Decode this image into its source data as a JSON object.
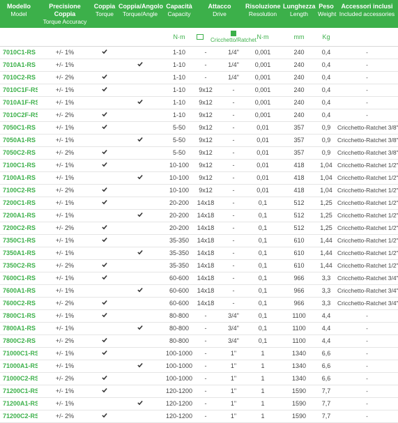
{
  "colors": {
    "brand": "#3cb04a",
    "text": "#444",
    "border": "#e5e5e5"
  },
  "headers": {
    "model": {
      "it": "Modello",
      "en": "Model"
    },
    "accuracy": {
      "it": "Precisione Coppia",
      "en": "Torque Accuracy"
    },
    "torque": {
      "it": "Coppia",
      "en": "Torque"
    },
    "angle": {
      "it": "Coppia/Angolo",
      "en": "Torque/Angle"
    },
    "capacity": {
      "it": "Capacità",
      "en": "Capacity"
    },
    "drive": {
      "it": "Attacco",
      "en": "Drive"
    },
    "resolution": {
      "it": "Risoluzione",
      "en": "Resolution"
    },
    "length": {
      "it": "Lunghezza",
      "en": "Length"
    },
    "weight": {
      "it": "Peso",
      "en": "Weight"
    },
    "accessories": {
      "it": "Accessori inclusi",
      "en": "Included accessories"
    }
  },
  "units": {
    "capacity": "N·m",
    "drive_label": "Cricchetto/Ratchet",
    "resolution": "N·m",
    "length": "mm",
    "weight": "Kg"
  },
  "rows": [
    {
      "model": "7010C1-RS",
      "accuracy": "+/- 1%",
      "torque": true,
      "angle": false,
      "capacity": "1-10",
      "drive_open": "-",
      "drive_ratchet": "1/4\"",
      "resolution": "0,001",
      "length": "240",
      "weight": "0,4",
      "accessories": "-"
    },
    {
      "model": "7010A1-RS",
      "accuracy": "+/- 1%",
      "torque": false,
      "angle": true,
      "capacity": "1-10",
      "drive_open": "-",
      "drive_ratchet": "1/4\"",
      "resolution": "0,001",
      "length": "240",
      "weight": "0,4",
      "accessories": "-"
    },
    {
      "model": "7010C2-RS",
      "accuracy": "+/- 2%",
      "torque": true,
      "angle": false,
      "capacity": "1-10",
      "drive_open": "-",
      "drive_ratchet": "1/4\"",
      "resolution": "0,001",
      "length": "240",
      "weight": "0,4",
      "accessories": "-"
    },
    {
      "model": "7010C1F-RS",
      "accuracy": "+/- 1%",
      "torque": true,
      "angle": false,
      "capacity": "1-10",
      "drive_open": "9x12",
      "drive_ratchet": "-",
      "resolution": "0,001",
      "length": "240",
      "weight": "0,4",
      "accessories": "-"
    },
    {
      "model": "7010A1F-RS",
      "accuracy": "+/- 1%",
      "torque": false,
      "angle": true,
      "capacity": "1-10",
      "drive_open": "9x12",
      "drive_ratchet": "-",
      "resolution": "0,001",
      "length": "240",
      "weight": "0,4",
      "accessories": "-"
    },
    {
      "model": "7010C2F-RS",
      "accuracy": "+/- 2%",
      "torque": true,
      "angle": false,
      "capacity": "1-10",
      "drive_open": "9x12",
      "drive_ratchet": "-",
      "resolution": "0,001",
      "length": "240",
      "weight": "0,4",
      "accessories": "-"
    },
    {
      "model": "7050C1-RS",
      "accuracy": "+/- 1%",
      "torque": true,
      "angle": false,
      "capacity": "5-50",
      "drive_open": "9x12",
      "drive_ratchet": "-",
      "resolution": "0,01",
      "length": "357",
      "weight": "0,9",
      "accessories": "Cricchetto-Ratchet 3/8\""
    },
    {
      "model": "7050A1-RS",
      "accuracy": "+/- 1%",
      "torque": false,
      "angle": true,
      "capacity": "5-50",
      "drive_open": "9x12",
      "drive_ratchet": "-",
      "resolution": "0,01",
      "length": "357",
      "weight": "0,9",
      "accessories": "Cricchetto-Ratchet 3/8\""
    },
    {
      "model": "7050C2-RS",
      "accuracy": "+/- 2%",
      "torque": true,
      "angle": false,
      "capacity": "5-50",
      "drive_open": "9x12",
      "drive_ratchet": "-",
      "resolution": "0,01",
      "length": "357",
      "weight": "0,9",
      "accessories": "Cricchetto-Ratchet 3/8\""
    },
    {
      "model": "7100C1-RS",
      "accuracy": "+/- 1%",
      "torque": true,
      "angle": false,
      "capacity": "10-100",
      "drive_open": "9x12",
      "drive_ratchet": "-",
      "resolution": "0,01",
      "length": "418",
      "weight": "1,04",
      "accessories": "Cricchetto-Ratchet 1/2\""
    },
    {
      "model": "7100A1-RS",
      "accuracy": "+/- 1%",
      "torque": false,
      "angle": true,
      "capacity": "10-100",
      "drive_open": "9x12",
      "drive_ratchet": "-",
      "resolution": "0,01",
      "length": "418",
      "weight": "1,04",
      "accessories": "Cricchetto-Ratchet 1/2\""
    },
    {
      "model": "7100C2-RS",
      "accuracy": "+/- 2%",
      "torque": true,
      "angle": false,
      "capacity": "10-100",
      "drive_open": "9x12",
      "drive_ratchet": "-",
      "resolution": "0,01",
      "length": "418",
      "weight": "1,04",
      "accessories": "Cricchetto-Ratchet 1/2\""
    },
    {
      "model": "7200C1-RS",
      "accuracy": "+/- 1%",
      "torque": true,
      "angle": false,
      "capacity": "20-200",
      "drive_open": "14x18",
      "drive_ratchet": "-",
      "resolution": "0,1",
      "length": "512",
      "weight": "1,25",
      "accessories": "Cricchetto-Ratchet 1/2\""
    },
    {
      "model": "7200A1-RS",
      "accuracy": "+/- 1%",
      "torque": false,
      "angle": true,
      "capacity": "20-200",
      "drive_open": "14x18",
      "drive_ratchet": "-",
      "resolution": "0,1",
      "length": "512",
      "weight": "1,25",
      "accessories": "Cricchetto-Ratchet 1/2\""
    },
    {
      "model": "7200C2-RS",
      "accuracy": "+/- 2%",
      "torque": true,
      "angle": false,
      "capacity": "20-200",
      "drive_open": "14x18",
      "drive_ratchet": "-",
      "resolution": "0,1",
      "length": "512",
      "weight": "1,25",
      "accessories": "Cricchetto-Ratchet 1/2\""
    },
    {
      "model": "7350C1-RS",
      "accuracy": "+/- 1%",
      "torque": true,
      "angle": false,
      "capacity": "35-350",
      "drive_open": "14x18",
      "drive_ratchet": "-",
      "resolution": "0,1",
      "length": "610",
      "weight": "1,44",
      "accessories": "Cricchetto-Ratchet 1/2\""
    },
    {
      "model": "7350A1-RS",
      "accuracy": "+/- 1%",
      "torque": false,
      "angle": true,
      "capacity": "35-350",
      "drive_open": "14x18",
      "drive_ratchet": "-",
      "resolution": "0,1",
      "length": "610",
      "weight": "1,44",
      "accessories": "Cricchetto-Ratchet 1/2\""
    },
    {
      "model": "7350C2-RS",
      "accuracy": "+/- 2%",
      "torque": true,
      "angle": false,
      "capacity": "35-350",
      "drive_open": "14x18",
      "drive_ratchet": "-",
      "resolution": "0,1",
      "length": "610",
      "weight": "1,44",
      "accessories": "Cricchetto-Ratchet 1/2\""
    },
    {
      "model": "7600C1-RS",
      "accuracy": "+/- 1%",
      "torque": true,
      "angle": false,
      "capacity": "60-600",
      "drive_open": "14x18",
      "drive_ratchet": "-",
      "resolution": "0,1",
      "length": "966",
      "weight": "3,3",
      "accessories": "Cricchetto-Ratchet 3/4\""
    },
    {
      "model": "7600A1-RS",
      "accuracy": "+/- 1%",
      "torque": false,
      "angle": true,
      "capacity": "60-600",
      "drive_open": "14x18",
      "drive_ratchet": "-",
      "resolution": "0,1",
      "length": "966",
      "weight": "3,3",
      "accessories": "Cricchetto-Ratchet 3/4\""
    },
    {
      "model": "7600C2-RS",
      "accuracy": "+/- 2%",
      "torque": true,
      "angle": false,
      "capacity": "60-600",
      "drive_open": "14x18",
      "drive_ratchet": "-",
      "resolution": "0,1",
      "length": "966",
      "weight": "3,3",
      "accessories": "Cricchetto-Ratchet 3/4\""
    },
    {
      "model": "7800C1-RS",
      "accuracy": "+/- 1%",
      "torque": true,
      "angle": false,
      "capacity": "80-800",
      "drive_open": "-",
      "drive_ratchet": "3/4\"",
      "resolution": "0,1",
      "length": "1100",
      "weight": "4,4",
      "accessories": "-"
    },
    {
      "model": "7800A1-RS",
      "accuracy": "+/- 1%",
      "torque": false,
      "angle": true,
      "capacity": "80-800",
      "drive_open": "-",
      "drive_ratchet": "3/4\"",
      "resolution": "0,1",
      "length": "1100",
      "weight": "4,4",
      "accessories": "-"
    },
    {
      "model": "7800C2-RS",
      "accuracy": "+/- 2%",
      "torque": true,
      "angle": false,
      "capacity": "80-800",
      "drive_open": "-",
      "drive_ratchet": "3/4\"",
      "resolution": "0,1",
      "length": "1100",
      "weight": "4,4",
      "accessories": "-"
    },
    {
      "model": "71000C1-RS",
      "accuracy": "+/- 1%",
      "torque": true,
      "angle": false,
      "capacity": "100-1000",
      "drive_open": "-",
      "drive_ratchet": "1\"",
      "resolution": "1",
      "length": "1340",
      "weight": "6,6",
      "accessories": "-"
    },
    {
      "model": "71000A1-RS",
      "accuracy": "+/- 1%",
      "torque": false,
      "angle": true,
      "capacity": "100-1000",
      "drive_open": "-",
      "drive_ratchet": "1\"",
      "resolution": "1",
      "length": "1340",
      "weight": "6,6",
      "accessories": "-"
    },
    {
      "model": "71000C2-RS",
      "accuracy": "+/- 2%",
      "torque": true,
      "angle": false,
      "capacity": "100-1000",
      "drive_open": "-",
      "drive_ratchet": "1\"",
      "resolution": "1",
      "length": "1340",
      "weight": "6,6",
      "accessories": "-"
    },
    {
      "model": "71200C1-RS",
      "accuracy": "+/- 1%",
      "torque": true,
      "angle": false,
      "capacity": "120-1200",
      "drive_open": "-",
      "drive_ratchet": "1\"",
      "resolution": "1",
      "length": "1590",
      "weight": "7,7",
      "accessories": "-"
    },
    {
      "model": "71200A1-RS",
      "accuracy": "+/- 1%",
      "torque": false,
      "angle": true,
      "capacity": "120-1200",
      "drive_open": "-",
      "drive_ratchet": "1\"",
      "resolution": "1",
      "length": "1590",
      "weight": "7,7",
      "accessories": "-"
    },
    {
      "model": "71200C2-RS",
      "accuracy": "+/- 2%",
      "torque": true,
      "angle": false,
      "capacity": "120-1200",
      "drive_open": "-",
      "drive_ratchet": "1\"",
      "resolution": "1",
      "length": "1590",
      "weight": "7,7",
      "accessories": "-"
    }
  ]
}
